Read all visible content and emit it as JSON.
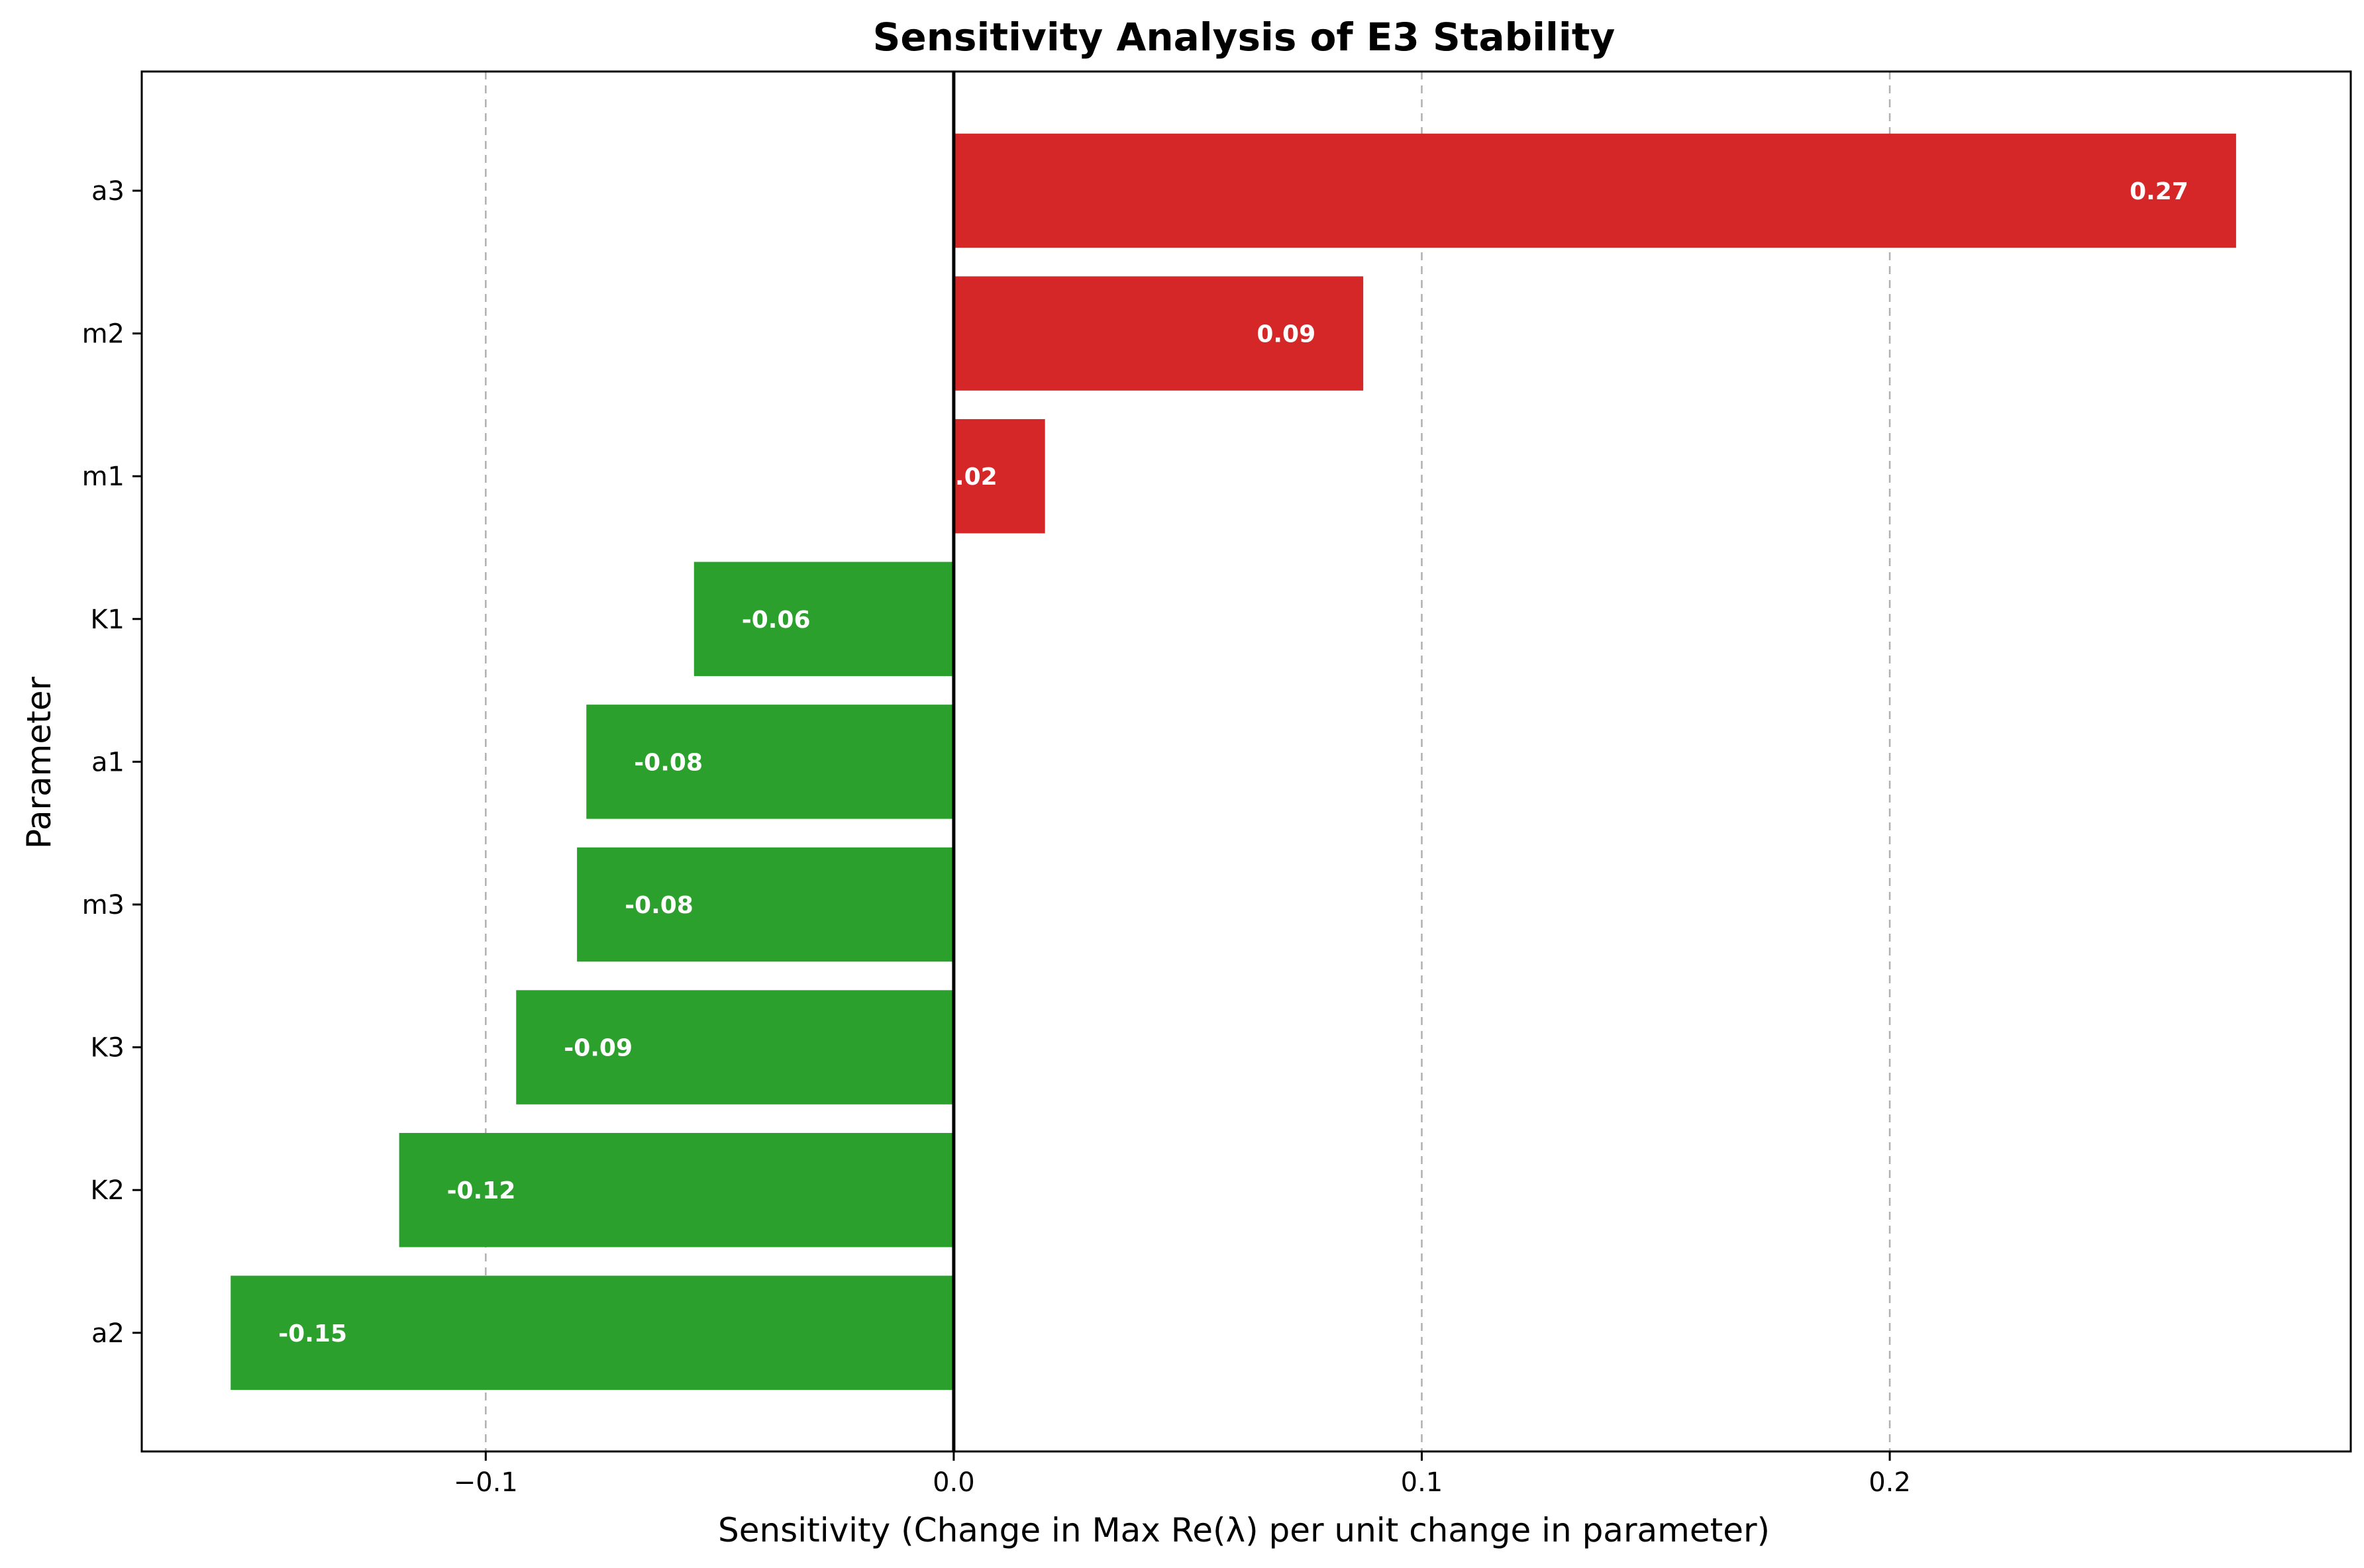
{
  "chart_data": {
    "type": "bar",
    "orientation": "horizontal",
    "title": "Sensitivity Analysis of E3 Stability",
    "xlabel": "Sensitivity (Change in Max Re(λ) per unit change in parameter)",
    "ylabel": "Parameter",
    "xlim": [
      -0.1735,
      0.2985
    ],
    "xticks": [
      {
        "value": -0.1,
        "label": "−0.1"
      },
      {
        "value": 0.0,
        "label": "0.0"
      },
      {
        "value": 0.1,
        "label": "0.1"
      },
      {
        "value": 0.2,
        "label": "0.2"
      }
    ],
    "grid": "x-dashed",
    "legend": "none",
    "colors": {
      "positive": "#d62728",
      "negative": "#2ca02c"
    },
    "categories": [
      "a3",
      "m2",
      "m1",
      "K1",
      "a1",
      "m3",
      "K3",
      "K2",
      "a2"
    ],
    "values": [
      0.274,
      0.0875,
      0.0195,
      -0.0555,
      -0.0785,
      -0.0805,
      -0.0935,
      -0.1185,
      -0.1545
    ],
    "value_labels": [
      "0.27",
      "0.09",
      "0.02",
      "-0.06",
      "-0.08",
      "-0.08",
      "-0.09",
      "-0.12",
      "-0.15"
    ]
  }
}
